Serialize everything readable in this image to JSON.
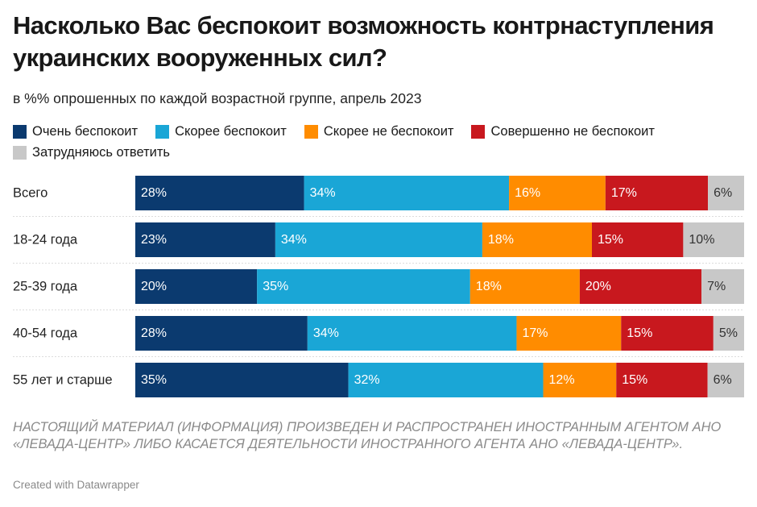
{
  "chart_data": {
    "type": "bar",
    "orientation": "horizontal",
    "stacked": true,
    "title": "Насколько Вас беспокоит возможность контрнаступления украинских вооруженных сил?",
    "subtitle": "в %% опрошенных по каждой возрастной группе, апрель 2023",
    "categories": [
      "Всего",
      "18-24 года",
      "25-39 года",
      "40-54 года",
      "55 лет и старше"
    ],
    "series": [
      {
        "name": "Очень беспокоит",
        "color": "#0b3a6f",
        "label_color": "#ffffff",
        "values": [
          28,
          23,
          20,
          28,
          35
        ]
      },
      {
        "name": "Скорее беспокоит",
        "color": "#1aa6d6",
        "label_color": "#ffffff",
        "values": [
          34,
          34,
          35,
          34,
          32
        ]
      },
      {
        "name": "Скорее не беспокоит",
        "color": "#ff8c00",
        "label_color": "#ffffff",
        "values": [
          16,
          18,
          18,
          17,
          12
        ]
      },
      {
        "name": "Совершенно не беспокоит",
        "color": "#c8181e",
        "label_color": "#ffffff",
        "values": [
          17,
          15,
          20,
          15,
          15
        ]
      },
      {
        "name": "Затрудняюсь ответить",
        "color": "#c8c8c8",
        "label_color": "#333333",
        "values": [
          6,
          10,
          7,
          5,
          6
        ]
      }
    ],
    "value_suffix": "%",
    "legend_position": "top-left"
  },
  "note": "НАСТОЯЩИЙ МАТЕРИАЛ (ИНФОРМАЦИЯ) ПРОИЗВЕДЕН И РАСПРОСТРАНЕН ИНОСТРАННЫМ АГЕНТОМ АНО «ЛЕВАДА-ЦЕНТР» ЛИБО КАСАЕТСЯ ДЕЯТЕЛЬНОСТИ ИНОСТРАННОГО АГЕНТА АНО «ЛЕВАДА-ЦЕНТР».",
  "credit": "Created with Datawrapper"
}
